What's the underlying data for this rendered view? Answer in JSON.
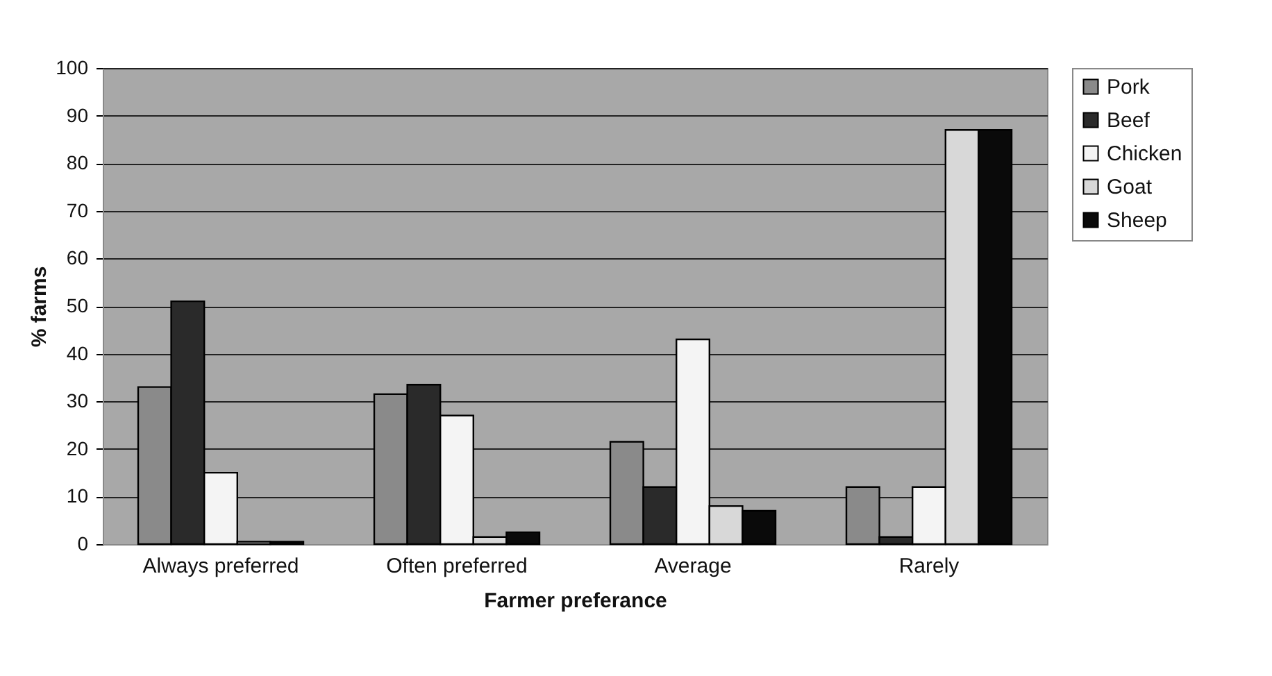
{
  "chart_data": {
    "type": "bar",
    "xlabel": "Farmer preferance",
    "ylabel": "% farms",
    "categories": [
      "Always preferred",
      "Often preferred",
      "Average",
      "Rarely"
    ],
    "series": [
      {
        "name": "Pork",
        "color": "#8a8a8a",
        "values": [
          33,
          31.5,
          21.5,
          12
        ]
      },
      {
        "name": "Beef",
        "color": "#2a2a2a",
        "values": [
          51,
          33.5,
          12,
          1.5
        ]
      },
      {
        "name": "Chicken",
        "color": "#f4f4f4",
        "values": [
          15,
          27,
          43,
          12
        ]
      },
      {
        "name": "Goat",
        "color": "#d8d8d8",
        "values": [
          0.5,
          1.5,
          8,
          87
        ]
      },
      {
        "name": "Sheep",
        "color": "#0a0a0a",
        "values": [
          0.5,
          2.5,
          7,
          87
        ]
      }
    ],
    "ylim": [
      0,
      100
    ],
    "yticks": [
      0,
      10,
      20,
      30,
      40,
      50,
      60,
      70,
      80,
      90,
      100
    ],
    "grid": "y",
    "legend": "right"
  }
}
